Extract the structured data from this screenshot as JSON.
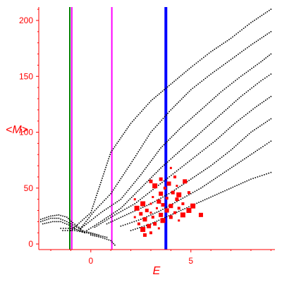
{
  "chart_data": {
    "type": "scatter",
    "title": "",
    "xlabel": "E",
    "ylabel": "<M>",
    "xlim": [
      -2.6,
      9.2
    ],
    "ylim": [
      -5,
      212
    ],
    "x_ticks": [
      0,
      5
    ],
    "y_ticks": [
      0,
      50,
      100,
      150,
      200
    ],
    "grid": false,
    "legend": "none",
    "colors": {
      "axis": "#ff0000",
      "tick_label": "#ff0000",
      "dots": "#000000",
      "highlight": "#ff0000",
      "vline_green": "#008000",
      "vline_magenta": "#ff00ff",
      "vline_blue": "#0000ff"
    },
    "vertical_lines": [
      {
        "x": -1.05,
        "color": "#008000",
        "width": 2
      },
      {
        "x": -0.95,
        "color": "#ff00ff",
        "width": 2
      },
      {
        "x": 1.05,
        "color": "#ff00ff",
        "width": 2
      },
      {
        "x": 3.75,
        "color": "#0000ff",
        "width": 4
      }
    ],
    "series": [
      {
        "role": "curves",
        "color": "#000000",
        "curves": [
          [
            [
              -1.0,
              12
            ],
            [
              0.0,
              28
            ],
            [
              1.0,
              82
            ],
            [
              2.0,
              108
            ],
            [
              3.0,
              128
            ],
            [
              4.0,
              143
            ],
            [
              5.0,
              158
            ],
            [
              6.0,
              172
            ],
            [
              7.0,
              184
            ],
            [
              8.0,
              198
            ],
            [
              9.0,
              210
            ]
          ],
          [
            [
              -0.6,
              12
            ],
            [
              0.2,
              30
            ],
            [
              1.0,
              45
            ],
            [
              2.0,
              72
            ],
            [
              3.0,
              100
            ],
            [
              4.0,
              120
            ],
            [
              5.0,
              138
            ],
            [
              6.0,
              152
            ],
            [
              7.0,
              165
            ],
            [
              8.0,
              178
            ],
            [
              9.0,
              190
            ]
          ],
          [
            [
              -0.5,
              14
            ],
            [
              0.5,
              28
            ],
            [
              1.5,
              40
            ],
            [
              2.5,
              62
            ],
            [
              3.5,
              86
            ],
            [
              4.5,
              104
            ],
            [
              5.5,
              120
            ],
            [
              6.5,
              136
            ],
            [
              7.5,
              150
            ],
            [
              8.5,
              163
            ],
            [
              9.0,
              170
            ]
          ],
          [
            [
              -0.2,
              12
            ],
            [
              0.5,
              20
            ],
            [
              1.5,
              32
            ],
            [
              2.5,
              50
            ],
            [
              3.5,
              68
            ],
            [
              4.5,
              84
            ],
            [
              5.5,
              100
            ],
            [
              6.5,
              116
            ],
            [
              7.5,
              132
            ],
            [
              8.5,
              146
            ],
            [
              9.0,
              152
            ]
          ],
          [
            [
              0.2,
              15
            ],
            [
              1.2,
              26
            ],
            [
              2.2,
              36
            ],
            [
              3.2,
              50
            ],
            [
              4.2,
              64
            ],
            [
              5.2,
              78
            ],
            [
              6.2,
              92
            ],
            [
              7.2,
              108
            ],
            [
              8.2,
              122
            ],
            [
              9.0,
              132
            ]
          ],
          [
            [
              0.8,
              18
            ],
            [
              2.0,
              28
            ],
            [
              3.0,
              36
            ],
            [
              4.0,
              46
            ],
            [
              5.0,
              58
            ],
            [
              6.0,
              70
            ],
            [
              7.0,
              84
            ],
            [
              8.0,
              100
            ],
            [
              9.0,
              112
            ]
          ],
          [
            [
              1.5,
              16
            ],
            [
              2.5,
              22
            ],
            [
              3.5,
              30
            ],
            [
              4.5,
              40
            ],
            [
              5.5,
              50
            ],
            [
              6.5,
              62
            ],
            [
              7.5,
              74
            ],
            [
              8.5,
              86
            ],
            [
              9.0,
              92
            ]
          ],
          [
            [
              2.0,
              12
            ],
            [
              3.0,
              18
            ],
            [
              4.0,
              26
            ],
            [
              5.0,
              34
            ],
            [
              6.0,
              42
            ],
            [
              7.0,
              50
            ],
            [
              8.0,
              58
            ],
            [
              9.0,
              64
            ]
          ],
          [
            [
              -2.5,
              22
            ],
            [
              -2.0,
              25
            ],
            [
              -1.6,
              26
            ],
            [
              -1.2,
              24
            ],
            [
              -0.9,
              19
            ],
            [
              -0.6,
              15
            ]
          ],
          [
            [
              -2.5,
              20
            ],
            [
              -2.0,
              23
            ],
            [
              -1.6,
              23
            ],
            [
              -1.2,
              20
            ],
            [
              -0.8,
              16
            ],
            [
              -0.4,
              12
            ]
          ],
          [
            [
              -2.4,
              18
            ],
            [
              -1.9,
              20
            ],
            [
              -1.5,
              20
            ],
            [
              -1.1,
              17
            ],
            [
              -0.7,
              13
            ],
            [
              -0.3,
              10
            ]
          ],
          [
            [
              -1.5,
              14
            ],
            [
              -1.0,
              14
            ],
            [
              -0.5,
              12
            ],
            [
              0.0,
              10
            ],
            [
              0.4,
              8
            ]
          ],
          [
            [
              -1.4,
              12
            ],
            [
              -0.8,
              12
            ],
            [
              -0.2,
              10
            ],
            [
              0.3,
              8
            ],
            [
              0.8,
              6
            ]
          ],
          [
            [
              0.0,
              8
            ],
            [
              0.5,
              6
            ],
            [
              1.0,
              3
            ],
            [
              1.2,
              -1
            ]
          ]
        ]
      },
      {
        "role": "highlight",
        "color": "#ff0000",
        "points": [
          [
            4.0,
            68
          ],
          [
            4.2,
            60
          ],
          [
            3.5,
            58
          ],
          [
            3.9,
            54
          ],
          [
            3.2,
            52
          ],
          [
            4.3,
            52
          ],
          [
            3.7,
            50
          ],
          [
            4.1,
            46
          ],
          [
            3.5,
            45
          ],
          [
            4.4,
            44
          ],
          [
            3.1,
            42
          ],
          [
            3.8,
            41
          ],
          [
            4.3,
            40
          ],
          [
            3.4,
            38
          ],
          [
            2.6,
            36
          ],
          [
            3.0,
            36
          ],
          [
            4.6,
            36
          ],
          [
            3.6,
            35
          ],
          [
            4.0,
            34
          ],
          [
            2.3,
            32
          ],
          [
            3.3,
            32
          ],
          [
            4.4,
            32
          ],
          [
            2.8,
            30
          ],
          [
            3.8,
            30
          ],
          [
            4.9,
            30
          ],
          [
            3.0,
            28
          ],
          [
            4.2,
            28
          ],
          [
            2.5,
            27
          ],
          [
            3.5,
            26
          ],
          [
            4.6,
            26
          ],
          [
            2.2,
            24
          ],
          [
            3.1,
            24
          ],
          [
            4.0,
            24
          ],
          [
            2.7,
            22
          ],
          [
            3.6,
            21
          ],
          [
            4.4,
            21
          ],
          [
            2.4,
            18
          ],
          [
            3.2,
            18
          ],
          [
            2.9,
            16
          ],
          [
            2.6,
            13
          ],
          [
            3.4,
            14
          ],
          [
            3.0,
            10
          ],
          [
            2.7,
            8
          ],
          [
            5.5,
            26
          ],
          [
            5.1,
            34
          ],
          [
            2.2,
            40
          ],
          [
            4.9,
            46
          ],
          [
            3.0,
            56
          ],
          [
            4.7,
            56
          ]
        ]
      }
    ]
  }
}
